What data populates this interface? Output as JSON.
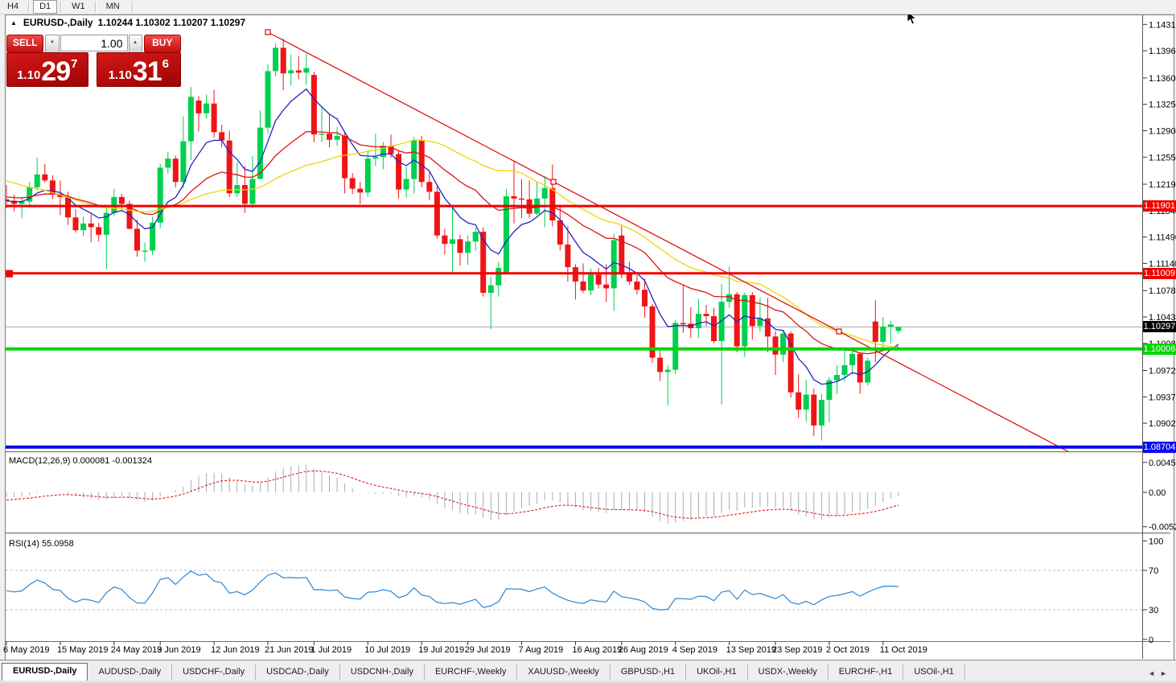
{
  "toolbar": {
    "timeframes": [
      "H4",
      "D1",
      "W1",
      "MN"
    ],
    "active": "D1"
  },
  "window": {
    "expander_icon": "▲",
    "title_symbol": "EURUSD-,Daily",
    "ohlc": "1.10244 1.10302 1.10207 1.10297"
  },
  "trade_panel": {
    "sell": "SELL",
    "buy": "BUY",
    "volume": "1.00",
    "vol_down_icon": "▼",
    "vol_up_icon": "▲",
    "sell_small": "1.10",
    "sell_big": "29",
    "sell_sup": "7",
    "buy_small": "1.10",
    "buy_big": "31",
    "buy_sup": "6"
  },
  "price_axis": {
    "ticks": [
      "1.14310",
      "1.13960",
      "1.13600",
      "1.13250",
      "1.12900",
      "1.12550",
      "1.12190",
      "1.11840",
      "1.11490",
      "1.11140",
      "1.10780",
      "1.10430",
      "1.10080",
      "1.09720",
      "1.09370",
      "1.09020",
      "1.08670"
    ]
  },
  "price_lines": [
    {
      "label": "1.11901",
      "price": 1.11901,
      "color": "#f00000",
      "width": 3,
      "marker": false
    },
    {
      "label": "1.11009",
      "price": 1.11009,
      "color": "#f00000",
      "width": 3,
      "marker": true
    },
    {
      "label": "1.10006",
      "price": 1.10006,
      "color": "#00d500",
      "width": 4,
      "marker": false
    },
    {
      "label": "1.08704",
      "price": 1.08704,
      "color": "#0a0aee",
      "width": 4,
      "marker": false
    }
  ],
  "current_price": {
    "label": "1.10297",
    "value": 1.10297,
    "badge_color": "#000000",
    "line_color": "#ababab"
  },
  "trendline": {
    "color": "#e00000",
    "anchors": [
      [
        34,
        1.14207
      ],
      [
        108.26,
        1.10238
      ]
    ],
    "extended": true
  },
  "chart_data": {
    "type": "candlestick",
    "symbol": "EURUSD-",
    "timeframe": "Daily",
    "up_color": "#00d050",
    "down_color": "#f01414",
    "candles": [
      [
        1.1199,
        1.1218,
        1.1187,
        1.1197
      ],
      [
        1.1197,
        1.1205,
        1.1183,
        1.1193
      ],
      [
        1.1193,
        1.1202,
        1.1174,
        1.1196
      ],
      [
        1.1196,
        1.1222,
        1.119,
        1.1215
      ],
      [
        1.1215,
        1.1254,
        1.1211,
        1.1232
      ],
      [
        1.1232,
        1.1246,
        1.1221,
        1.1224
      ],
      [
        1.1224,
        1.1231,
        1.1199,
        1.1206
      ],
      [
        1.1206,
        1.1224,
        1.1178,
        1.1202
      ],
      [
        1.1202,
        1.1209,
        1.1165,
        1.1175
      ],
      [
        1.1175,
        1.1186,
        1.1155,
        1.1158
      ],
      [
        1.1158,
        1.1176,
        1.115,
        1.1167
      ],
      [
        1.1167,
        1.1179,
        1.1142,
        1.1162
      ],
      [
        1.1162,
        1.1168,
        1.1143,
        1.1152
      ],
      [
        1.1152,
        1.1188,
        1.1107,
        1.1181
      ],
      [
        1.1181,
        1.1213,
        1.1177,
        1.1202
      ],
      [
        1.1202,
        1.1206,
        1.1186,
        1.1193
      ],
      [
        1.1193,
        1.1197,
        1.1159,
        1.116
      ],
      [
        1.116,
        1.1172,
        1.1123,
        1.1131
      ],
      [
        1.1131,
        1.1142,
        1.1116,
        1.1131
      ],
      [
        1.1131,
        1.1176,
        1.1125,
        1.1168
      ],
      [
        1.1168,
        1.1246,
        1.1161,
        1.1241
      ],
      [
        1.1241,
        1.1262,
        1.1233,
        1.1253
      ],
      [
        1.1253,
        1.1257,
        1.1215,
        1.1222
      ],
      [
        1.1222,
        1.1309,
        1.1214,
        1.1276
      ],
      [
        1.1276,
        1.1348,
        1.1251,
        1.1335
      ],
      [
        1.133,
        1.1336,
        1.1289,
        1.1313
      ],
      [
        1.1313,
        1.1338,
        1.1306,
        1.1326
      ],
      [
        1.1326,
        1.1344,
        1.1281,
        1.1288
      ],
      [
        1.1288,
        1.1298,
        1.1268,
        1.1277
      ],
      [
        1.1277,
        1.129,
        1.1202,
        1.1207
      ],
      [
        1.1207,
        1.1248,
        1.1202,
        1.1218
      ],
      [
        1.1218,
        1.1243,
        1.1181,
        1.1193
      ],
      [
        1.1193,
        1.1256,
        1.1187,
        1.1226
      ],
      [
        1.1226,
        1.1317,
        1.1226,
        1.1294
      ],
      [
        1.1294,
        1.1378,
        1.1286,
        1.1369
      ],
      [
        1.1369,
        1.1406,
        1.1362,
        1.14
      ],
      [
        1.14,
        1.1412,
        1.1344,
        1.1366
      ],
      [
        1.1366,
        1.1391,
        1.135,
        1.137
      ],
      [
        1.137,
        1.1389,
        1.1358,
        1.1367
      ],
      [
        1.1367,
        1.1392,
        1.1351,
        1.1373
      ],
      [
        1.1364,
        1.1368,
        1.1275,
        1.1285
      ],
      [
        1.1285,
        1.1322,
        1.1275,
        1.1286
      ],
      [
        1.1286,
        1.1313,
        1.1268,
        1.1278
      ],
      [
        1.1278,
        1.1295,
        1.127,
        1.1283
      ],
      [
        1.1283,
        1.1288,
        1.1207,
        1.1227
      ],
      [
        1.1227,
        1.1234,
        1.1206,
        1.1213
      ],
      [
        1.1213,
        1.1222,
        1.1193,
        1.1208
      ],
      [
        1.1208,
        1.1264,
        1.1202,
        1.1253
      ],
      [
        1.1253,
        1.1286,
        1.1243,
        1.1255
      ],
      [
        1.1255,
        1.1275,
        1.1239,
        1.127
      ],
      [
        1.127,
        1.1285,
        1.1254,
        1.1259
      ],
      [
        1.1259,
        1.1264,
        1.12,
        1.1212
      ],
      [
        1.1212,
        1.1242,
        1.1201,
        1.1226
      ],
      [
        1.1226,
        1.1282,
        1.1207,
        1.1277
      ],
      [
        1.1277,
        1.1283,
        1.1215,
        1.1222
      ],
      [
        1.1222,
        1.1235,
        1.1198,
        1.1209
      ],
      [
        1.1209,
        1.1218,
        1.1147,
        1.1151
      ],
      [
        1.1151,
        1.116,
        1.1126,
        1.114
      ],
      [
        1.114,
        1.1188,
        1.1101,
        1.1146
      ],
      [
        1.1146,
        1.1152,
        1.1111,
        1.1128
      ],
      [
        1.1128,
        1.1151,
        1.1112,
        1.1143
      ],
      [
        1.1143,
        1.1162,
        1.1131,
        1.1156
      ],
      [
        1.1156,
        1.1162,
        1.107,
        1.1075
      ],
      [
        1.1075,
        1.1096,
        1.1027,
        1.1085
      ],
      [
        1.1085,
        1.1116,
        1.107,
        1.1108
      ],
      [
        1.11,
        1.1213,
        1.11,
        1.1203
      ],
      [
        1.1203,
        1.125,
        1.1167,
        1.12
      ],
      [
        1.12,
        1.1226,
        1.1174,
        1.1199
      ],
      [
        1.1199,
        1.1224,
        1.1174,
        1.118
      ],
      [
        1.118,
        1.1223,
        1.1178,
        1.12
      ],
      [
        1.12,
        1.123,
        1.1162,
        1.1214
      ],
      [
        1.1214,
        1.1245,
        1.1163,
        1.1171
      ],
      [
        1.1171,
        1.1192,
        1.1131,
        1.1139
      ],
      [
        1.1139,
        1.1163,
        1.109,
        1.1109
      ],
      [
        1.1109,
        1.1113,
        1.1066,
        1.109
      ],
      [
        1.109,
        1.1114,
        1.1075,
        1.1078
      ],
      [
        1.1078,
        1.1107,
        1.1072,
        1.1099
      ],
      [
        1.1099,
        1.1108,
        1.1081,
        1.1086
      ],
      [
        1.1086,
        1.1113,
        1.1063,
        1.1081
      ],
      [
        1.1081,
        1.1153,
        1.1051,
        1.1145
      ],
      [
        1.1151,
        1.1164,
        1.1094,
        1.1101
      ],
      [
        1.1101,
        1.1116,
        1.1086,
        1.109
      ],
      [
        1.109,
        1.1098,
        1.1073,
        1.1079
      ],
      [
        1.1079,
        1.1094,
        1.1042,
        1.1057
      ],
      [
        1.1057,
        1.106,
        1.0982,
        1.0989
      ],
      [
        1.0989,
        1.0998,
        1.0958,
        1.097
      ],
      [
        1.097,
        1.0979,
        1.0926,
        1.0973
      ],
      [
        1.0973,
        1.1039,
        1.0967,
        1.1035
      ],
      [
        1.1035,
        1.1085,
        1.1022,
        1.1034
      ],
      [
        1.1034,
        1.1056,
        1.1015,
        1.1028
      ],
      [
        1.1028,
        1.1067,
        1.1015,
        1.1047
      ],
      [
        1.1047,
        1.1059,
        1.1031,
        1.1044
      ],
      [
        1.1044,
        1.1055,
        1.1008,
        1.1011
      ],
      [
        1.1011,
        1.1087,
        1.0927,
        1.1063
      ],
      [
        1.1063,
        1.111,
        1.1055,
        1.1073
      ],
      [
        1.1073,
        1.1076,
        1.0996,
        1.1004
      ],
      [
        1.1004,
        1.1075,
        1.099,
        1.1072
      ],
      [
        1.1072,
        1.1076,
        1.1013,
        1.1031
      ],
      [
        1.1031,
        1.1068,
        1.1023,
        1.1041
      ],
      [
        1.1041,
        1.1068,
        1.0996,
        1.1017
      ],
      [
        1.1017,
        1.1024,
        1.0966,
        1.0993
      ],
      [
        1.0993,
        1.1025,
        1.0983,
        1.1021
      ],
      [
        1.1021,
        1.1024,
        1.0936,
        1.0943
      ],
      [
        1.0943,
        1.0967,
        1.0909,
        1.092
      ],
      [
        1.092,
        1.0959,
        1.0904,
        1.094
      ],
      [
        1.094,
        1.0948,
        1.0885,
        1.0899
      ],
      [
        1.0899,
        1.0941,
        1.0879,
        1.0933
      ],
      [
        1.0933,
        1.0963,
        1.0903,
        1.0959
      ],
      [
        1.0959,
        1.0979,
        1.0941,
        1.0966
      ],
      [
        1.0966,
        1.0999,
        1.0957,
        1.0979
      ],
      [
        1.0979,
        1.0999,
        1.0967,
        1.0994
      ],
      [
        1.0994,
        1.0996,
        1.0941,
        1.0956
      ],
      [
        1.0956,
        1.0989,
        1.0952,
        1.0985
      ],
      [
        1.1037,
        1.1065,
        1.0983,
        1.101
      ],
      [
        1.101,
        1.1043,
        1.1,
        1.103
      ],
      [
        1.103,
        1.1038,
        1.1008,
        1.1033
      ],
      [
        1.10244,
        1.10302,
        1.10207,
        1.10297
      ]
    ],
    "warmup_closes": [
      1.1218,
      1.1206,
      1.1216,
      1.1226,
      1.1224,
      1.1262,
      1.1274,
      1.1288,
      1.1297,
      1.1305,
      1.1296,
      1.13,
      1.1312,
      1.1301,
      1.1292,
      1.128,
      1.1269,
      1.1262,
      1.1249,
      1.1228,
      1.1219,
      1.1226,
      1.1212,
      1.119,
      1.1153,
      1.1148,
      1.1157,
      1.115,
      1.1143,
      1.1162,
      1.1175,
      1.1184,
      1.1197,
      1.122,
      1.1192,
      1.1187,
      1.1201,
      1.1208,
      1.1199,
      1.12
    ],
    "date_ticks": [
      {
        "label": "6 May 2019",
        "index": 0
      },
      {
        "label": "15 May 2019",
        "index": 7
      },
      {
        "label": "24 May 2019",
        "index": 14
      },
      {
        "label": "3 Jun 2019",
        "index": 20
      },
      {
        "label": "12 Jun 2019",
        "index": 27
      },
      {
        "label": "21 Jun 2019",
        "index": 34
      },
      {
        "label": "1 Jul 2019",
        "index": 40
      },
      {
        "label": "10 Jul 2019",
        "index": 47
      },
      {
        "label": "19 Jul 2019",
        "index": 54
      },
      {
        "label": "29 Jul 2019",
        "index": 60
      },
      {
        "label": "7 Aug 2019",
        "index": 67
      },
      {
        "label": "16 Aug 2019",
        "index": 74
      },
      {
        "label": "26 Aug 2019",
        "index": 80
      },
      {
        "label": "4 Sep 2019",
        "index": 87
      },
      {
        "label": "13 Sep 2019",
        "index": 94
      },
      {
        "label": "23 Sep 2019",
        "index": 100
      },
      {
        "label": "2 Oct 2019",
        "index": 107
      },
      {
        "label": "11 Oct 2019",
        "index": 114
      }
    ],
    "moving_averages": [
      {
        "name": "fast",
        "method": "ema",
        "period": 8,
        "color": "#2222c8"
      },
      {
        "name": "medium",
        "method": "ema",
        "period": 24,
        "color": "#dc1414"
      },
      {
        "name": "slow",
        "method": "sma",
        "period": 34,
        "color": "#efd500"
      }
    ]
  },
  "macd": {
    "label": "MACD(12,26,9) 0.000081 -0.001324",
    "value": "0.000081",
    "signal_value": "-0.001324",
    "axis": [
      "0.004536",
      "0.00",
      "-0.005205"
    ],
    "bar_color": "#ababab",
    "signal_color": "#e02020"
  },
  "rsi": {
    "label": "RSI(14) 55.0958",
    "value": "55.0958",
    "axis": [
      "100",
      "70",
      "30",
      "0"
    ],
    "levels": [
      70,
      30
    ],
    "line_color": "#2e86d2"
  },
  "tabs": {
    "items": [
      "EURUSD-,Daily",
      "AUDUSD-,Daily",
      "USDCHF-,Daily",
      "USDCAD-,Daily",
      "USDCNH-,Daily",
      "EURCHF-,Weekly",
      "XAUUSD-,Weekly",
      "GBPUSD-,H1",
      "UKOil-,H1",
      "USDX-,Weekly",
      "EURCHF-,H1",
      "USOil-,H1"
    ],
    "active": "EURUSD-,Daily",
    "scroll_left": "◄",
    "scroll_right": "►"
  }
}
